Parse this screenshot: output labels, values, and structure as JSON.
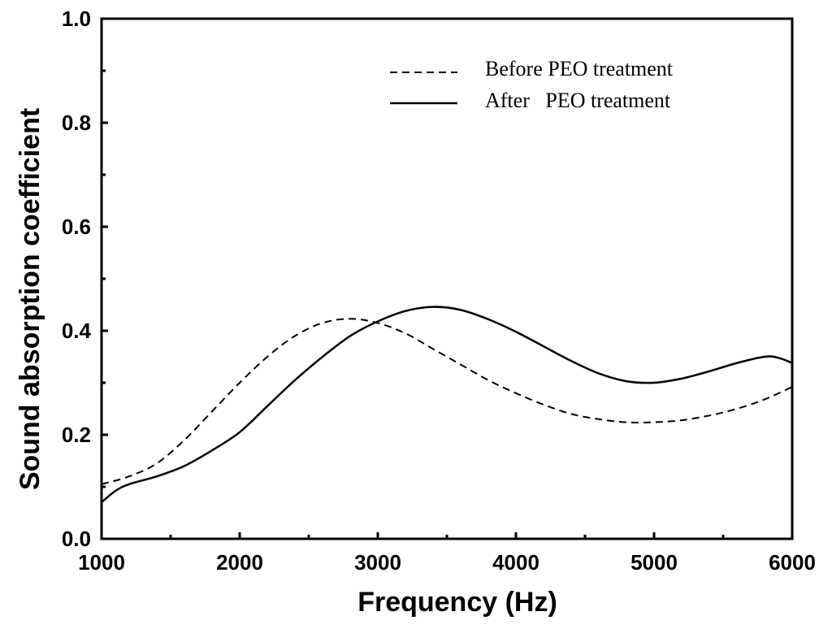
{
  "chart_data": {
    "type": "line",
    "title": "",
    "xlabel": "Frequency (Hz)",
    "ylabel": "Sound absorption coefficient",
    "xlim": [
      1000,
      6000
    ],
    "ylim": [
      0.0,
      1.0
    ],
    "xticks": [
      1000,
      2000,
      3000,
      4000,
      5000,
      6000
    ],
    "xtick_labels": [
      "1000",
      "2000",
      "3000",
      "4000",
      "5000",
      "6000"
    ],
    "yticks": [
      0.0,
      0.2,
      0.4,
      0.6,
      0.8,
      1.0
    ],
    "ytick_labels": [
      "0.0",
      "0.2",
      "0.4",
      "0.6",
      "0.8",
      "1.0"
    ],
    "grid": false,
    "legend_position": "top-right",
    "series": [
      {
        "name": "Before PEO treatment",
        "label": "Before PEO treatment",
        "style": "dashed",
        "x": [
          1000,
          1200,
          1400,
          1600,
          1800,
          2000,
          2200,
          2400,
          2600,
          2800,
          3000,
          3200,
          3400,
          3600,
          3800,
          4000,
          4200,
          4400,
          4600,
          4800,
          5000,
          5200,
          5400,
          5600,
          5800,
          6000
        ],
        "y": [
          0.105,
          0.12,
          0.145,
          0.19,
          0.245,
          0.3,
          0.35,
          0.39,
          0.415,
          0.423,
          0.415,
          0.395,
          0.365,
          0.335,
          0.305,
          0.28,
          0.258,
          0.24,
          0.23,
          0.224,
          0.224,
          0.228,
          0.237,
          0.25,
          0.268,
          0.292
        ]
      },
      {
        "name": "After PEO treatment",
        "label": "After   PEO treatment",
        "style": "solid",
        "x": [
          1000,
          1100,
          1200,
          1400,
          1600,
          1800,
          2000,
          2200,
          2400,
          2600,
          2800,
          3000,
          3200,
          3400,
          3600,
          3800,
          4000,
          4200,
          4400,
          4600,
          4800,
          5000,
          5200,
          5400,
          5600,
          5800,
          5900,
          6000
        ],
        "y": [
          0.07,
          0.092,
          0.105,
          0.12,
          0.14,
          0.17,
          0.205,
          0.255,
          0.305,
          0.35,
          0.39,
          0.418,
          0.438,
          0.446,
          0.44,
          0.422,
          0.398,
          0.37,
          0.342,
          0.318,
          0.303,
          0.3,
          0.308,
          0.322,
          0.338,
          0.35,
          0.348,
          0.338
        ]
      }
    ]
  }
}
